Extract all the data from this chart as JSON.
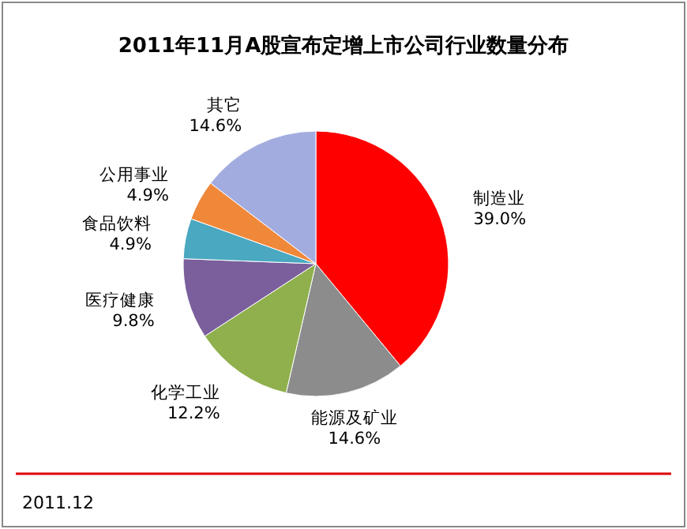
{
  "chart_data": {
    "type": "pie",
    "title": "2011年11月A股宣布定增上市公司行业数量分布",
    "categories": [
      "制造业",
      "能源及矿业",
      "化学工业",
      "医疗健康",
      "食品饮料",
      "公用事业",
      "其它"
    ],
    "values": [
      39.0,
      14.6,
      12.2,
      9.8,
      4.9,
      4.9,
      14.6
    ],
    "value_labels": [
      "39.0%",
      "14.6%",
      "12.2%",
      "9.8%",
      "4.9%",
      "4.9%",
      "14.6%"
    ],
    "colors": [
      "#ff0000",
      "#8c8c8c",
      "#8fb04c",
      "#7a5f9c",
      "#4aa8c0",
      "#f0883a",
      "#a3acdf"
    ],
    "legend": false,
    "annotations": [
      "2011.12"
    ]
  }
}
